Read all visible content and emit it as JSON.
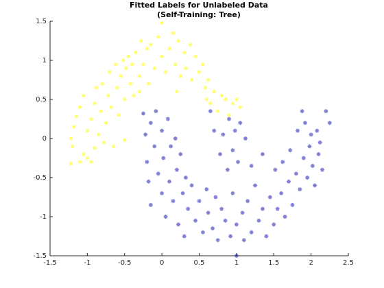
{
  "chart_data": {
    "type": "scatter",
    "title": "Fitted Labels for Unlabeled Data",
    "subtitle": "(Self-Training: Tree)",
    "xlim": [
      -1.5,
      2.5
    ],
    "xticks": [
      -1.5,
      -1,
      -0.5,
      0,
      0.5,
      1,
      1.5,
      2,
      2.5
    ],
    "ylim": [
      -1.5,
      1.5
    ],
    "yticks": [
      -1.5,
      -1,
      -0.5,
      0,
      0.5,
      1,
      1.5
    ],
    "grid": false,
    "series": [
      {
        "color": "#ffff00",
        "marker": "circle",
        "x": [
          -1.22,
          -1.2,
          -1.22,
          -1.18,
          -1.15,
          -1.1,
          -1.05,
          -1.0,
          -1.0,
          -0.95,
          -1.05,
          -0.95,
          -0.9,
          -0.88,
          -0.85,
          -0.82,
          -0.8,
          -0.78,
          -0.75,
          -0.72,
          -0.7,
          -0.68,
          -0.65,
          -0.62,
          -0.6,
          -0.58,
          -0.55,
          -0.52,
          -0.5,
          -0.48,
          -0.45,
          -0.42,
          -0.4,
          -0.38,
          -0.35,
          -0.3,
          -0.28,
          -0.25,
          -0.2,
          -0.18,
          -0.15,
          -0.1,
          -0.05,
          0.0,
          0.0,
          0.05,
          0.1,
          0.15,
          0.18,
          0.22,
          0.25,
          0.3,
          0.32,
          0.38,
          0.4,
          0.45,
          0.5,
          0.55,
          0.58,
          0.6,
          0.62,
          0.65,
          0.7,
          0.75,
          0.8,
          0.85,
          0.9,
          0.95,
          1.0,
          1.05,
          -0.5,
          -1.1,
          -0.9,
          -0.3,
          0.2
        ],
        "values": [
          -0.32,
          -0.1,
          0.0,
          0.15,
          0.28,
          0.4,
          0.55,
          0.1,
          -0.25,
          -0.3,
          -0.2,
          0.25,
          0.45,
          0.65,
          0.05,
          0.35,
          0.7,
          -0.05,
          0.2,
          0.55,
          0.85,
          0.4,
          -0.1,
          0.95,
          0.65,
          0.3,
          0.8,
          1.0,
          0.5,
          0.9,
          1.05,
          0.7,
          0.95,
          0.55,
          1.1,
          0.8,
          1.25,
          0.95,
          1.15,
          0.7,
          1.2,
          0.9,
          1.3,
          1.48,
          1.05,
          0.85,
          1.15,
          1.35,
          0.95,
          1.25,
          0.8,
          1.1,
          0.9,
          1.2,
          0.75,
          1.05,
          0.85,
          0.95,
          0.65,
          0.5,
          0.75,
          0.45,
          0.6,
          0.35,
          0.55,
          0.5,
          0.3,
          0.45,
          0.5,
          0.4,
          -0.02,
          -0.3,
          -0.12,
          0.6,
          0.6
        ]
      },
      {
        "color": "#0000aa",
        "marker": "asterisk",
        "x": [
          -0.25,
          -0.22,
          -0.2,
          -0.18,
          -0.15,
          -0.15,
          -0.1,
          -0.08,
          -0.05,
          0.0,
          0.0,
          0.02,
          0.05,
          0.08,
          0.1,
          0.12,
          0.15,
          0.18,
          0.2,
          0.22,
          0.25,
          0.28,
          0.3,
          0.32,
          0.35,
          0.4,
          0.45,
          0.5,
          0.55,
          0.6,
          0.62,
          0.65,
          0.68,
          0.7,
          0.72,
          0.75,
          0.78,
          0.8,
          0.82,
          0.85,
          0.88,
          0.9,
          0.92,
          0.95,
          0.98,
          1.0,
          1.0,
          1.02,
          1.05,
          1.08,
          1.1,
          1.12,
          1.15,
          1.2,
          1.25,
          1.3,
          1.35,
          1.4,
          1.45,
          1.5,
          1.52,
          1.55,
          1.6,
          1.62,
          1.65,
          1.7,
          1.72,
          1.75,
          1.8,
          1.82,
          1.85,
          1.88,
          1.9,
          1.92,
          1.95,
          1.98,
          2.0,
          2.02,
          2.05,
          2.08,
          2.1,
          2.12,
          2.15,
          2.2,
          2.25,
          1.35,
          1.2,
          0.95
        ],
        "values": [
          0.32,
          0.05,
          -0.3,
          -0.55,
          0.2,
          -0.85,
          -0.1,
          0.35,
          -0.45,
          0.1,
          -0.7,
          -0.25,
          -1.0,
          0.25,
          -0.55,
          -0.1,
          -0.8,
          0.0,
          -0.4,
          -1.1,
          -0.2,
          -0.7,
          -1.25,
          -0.5,
          -0.9,
          -0.6,
          -1.05,
          -0.8,
          -1.2,
          -0.65,
          -0.95,
          0.35,
          -1.15,
          0.1,
          -0.75,
          -1.3,
          -0.2,
          -0.9,
          0.05,
          -1.05,
          -0.4,
          0.25,
          -1.25,
          -0.7,
          0.1,
          -1.1,
          -1.5,
          -0.3,
          0.2,
          -0.95,
          -1.3,
          0.0,
          -0.8,
          -1.2,
          -0.6,
          -1.05,
          -0.9,
          -1.25,
          -0.75,
          -1.1,
          -0.4,
          -0.9,
          -0.7,
          -0.3,
          -1.0,
          -0.55,
          -0.15,
          -0.85,
          -0.45,
          0.1,
          -0.65,
          0.35,
          -0.25,
          0.2,
          -0.5,
          -0.1,
          0.05,
          -0.35,
          -0.6,
          0.1,
          -0.2,
          -0.05,
          -0.4,
          0.35,
          0.2,
          -0.2,
          -0.35,
          -0.15
        ]
      }
    ]
  }
}
